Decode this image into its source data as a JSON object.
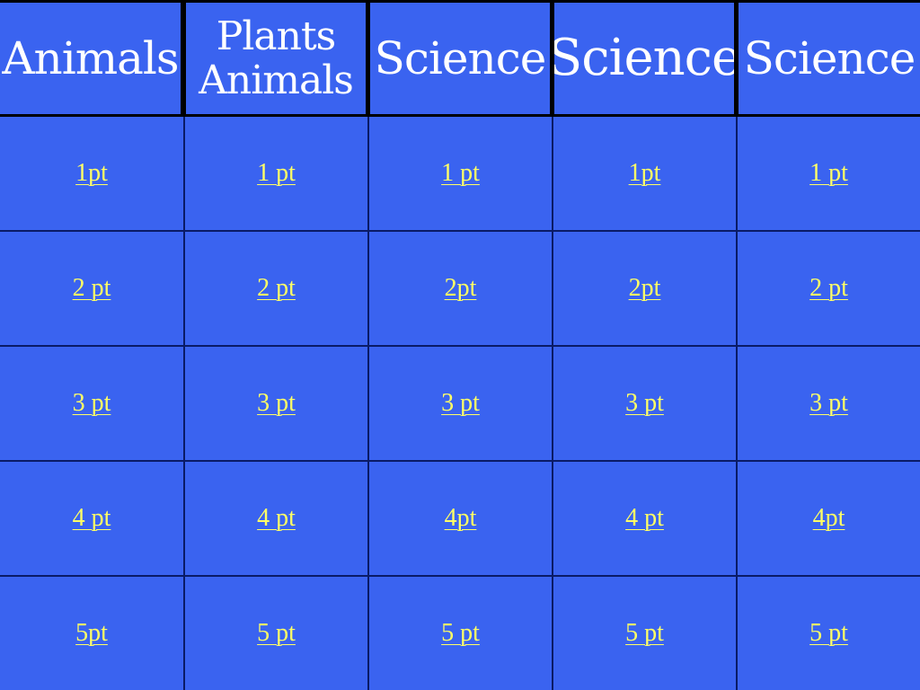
{
  "headers": [
    {
      "lines": [
        "Animals"
      ]
    },
    {
      "lines": [
        "Plants",
        "Animals"
      ]
    },
    {
      "lines": [
        "Science"
      ]
    },
    {
      "lines": [
        "Science"
      ]
    },
    {
      "lines": [
        "Science"
      ]
    }
  ],
  "rows": [
    [
      "1pt",
      "1 pt",
      "1 pt",
      "1pt",
      "1 pt"
    ],
    [
      "2 pt",
      "2 pt",
      "2pt",
      "2pt",
      "2 pt"
    ],
    [
      "3 pt",
      "3 pt",
      "3 pt",
      "3 pt",
      "3 pt"
    ],
    [
      "4 pt",
      "4 pt",
      "4pt",
      "4 pt",
      "4pt"
    ],
    [
      "5pt",
      "5 pt",
      "5 pt",
      "5 pt",
      "5 pt"
    ]
  ],
  "colors": {
    "board_blue": "#3a63f0",
    "header_text": "#ffffff",
    "link_yellow": "#ffff66",
    "grid_line": "#0a1b66"
  }
}
